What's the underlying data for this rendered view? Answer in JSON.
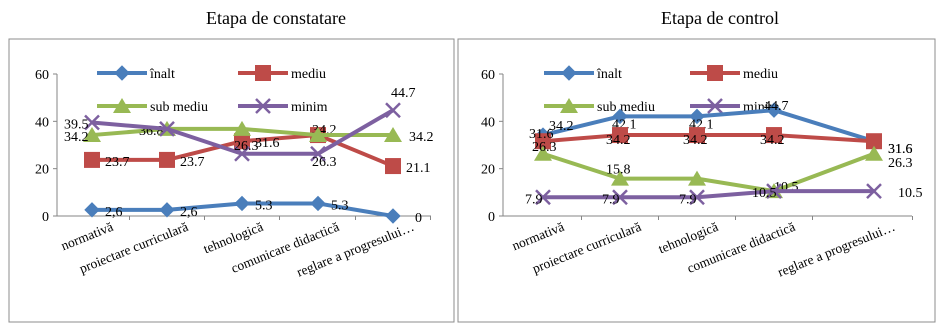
{
  "chart_data": [
    {
      "type": "line",
      "title": "Etapa de constatare",
      "categories": [
        "normativă",
        "proiectare curriculară",
        "tehnologică",
        "comunicare didactică",
        "reglare a progresului…"
      ],
      "ylim": [
        0,
        60
      ],
      "yticks": [
        "0",
        "20",
        "40",
        "60"
      ],
      "legend": "top",
      "series": [
        {
          "name": "înalt",
          "color": "#4a7ebb",
          "marker": "diamond",
          "values": [
            2.6,
            2.6,
            5.3,
            5.3,
            0
          ],
          "labels": [
            "2,6",
            "2,6",
            "5.3",
            "5.3",
            "0"
          ]
        },
        {
          "name": "mediu",
          "color": "#be4b48",
          "marker": "square",
          "values": [
            23.7,
            23.7,
            31.6,
            34.2,
            21.1
          ],
          "labels": [
            "23.7",
            "23.7",
            "31.6",
            "34.2",
            "21.1"
          ]
        },
        {
          "name": "sub mediu",
          "color": "#98b954",
          "marker": "triangle",
          "values": [
            34.2,
            36.8,
            36.8,
            34.2,
            34.2
          ],
          "labels": [
            "34.2",
            "36.8",
            "",
            "",
            "34.2"
          ]
        },
        {
          "name": "minim",
          "color": "#7d60a0",
          "marker": "x",
          "values": [
            39.5,
            36.8,
            26.3,
            26.3,
            44.7
          ],
          "labels": [
            "39.5",
            "",
            "26.3",
            "26.3",
            "44.7"
          ]
        }
      ]
    },
    {
      "type": "line",
      "title": "Etapa de control",
      "categories": [
        "normativă",
        "proiectare curriculară",
        "tehnologică",
        "comunicare didactică",
        "reglare a progresului…"
      ],
      "ylim": [
        0,
        60
      ],
      "yticks": [
        "0",
        "20",
        "40",
        "60"
      ],
      "legend": "top",
      "series": [
        {
          "name": "înalt",
          "color": "#4a7ebb",
          "marker": "diamond",
          "values": [
            34.2,
            42.1,
            42.1,
            44.7,
            31.6
          ],
          "labels": [
            "34.2",
            "42.1",
            "42.1",
            "44.7",
            "31.6"
          ]
        },
        {
          "name": "mediu",
          "color": "#be4b48",
          "marker": "square",
          "values": [
            31.6,
            34.2,
            34.2,
            34.2,
            31.6
          ],
          "labels": [
            "31.6",
            "34.2",
            "34.2",
            "34.2",
            "31.6"
          ]
        },
        {
          "name": "sub mediu",
          "color": "#98b954",
          "marker": "triangle",
          "values": [
            26.3,
            15.8,
            15.8,
            10.5,
            26.3
          ],
          "labels": [
            "26.3",
            "15.8",
            "",
            "10.5",
            "26.3"
          ]
        },
        {
          "name": "minim",
          "color": "#7d60a0",
          "marker": "x",
          "values": [
            7.9,
            7.9,
            7.9,
            10.5,
            10.5
          ],
          "labels": [
            "7.9",
            "7.9",
            "7.9",
            "10.5",
            "10.5"
          ]
        }
      ]
    }
  ]
}
